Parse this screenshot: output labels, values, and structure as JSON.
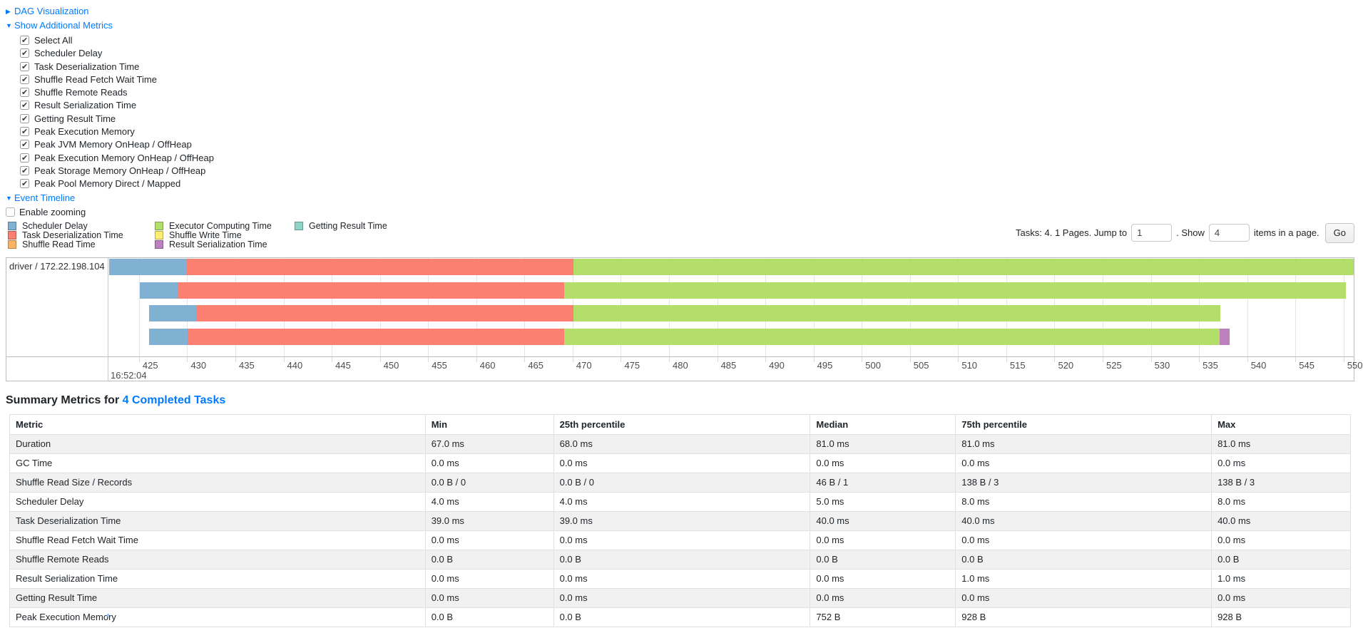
{
  "colors": {
    "link": "#007bff",
    "scheduler_delay": "#80B1D3",
    "deserialization": "#FB8072",
    "shuffle_read": "#FDB462",
    "compute": "#B3DE69",
    "shuffle_write": "#FFED6F",
    "result_serialization": "#BC80BD",
    "getting_result": "#8DD3C7"
  },
  "toggles": {
    "dag_label": "DAG Visualization",
    "metrics_label": "Show Additional Metrics",
    "event_timeline_label": "Event Timeline",
    "enable_zooming_label": "Enable zooming"
  },
  "metric_options": [
    {
      "label": "Select All",
      "checked": true
    },
    {
      "label": "Scheduler Delay",
      "checked": true
    },
    {
      "label": "Task Deserialization Time",
      "checked": true
    },
    {
      "label": "Shuffle Read Fetch Wait Time",
      "checked": true
    },
    {
      "label": "Shuffle Remote Reads",
      "checked": true
    },
    {
      "label": "Result Serialization Time",
      "checked": true
    },
    {
      "label": "Getting Result Time",
      "checked": true
    },
    {
      "label": "Peak Execution Memory",
      "checked": true
    },
    {
      "label": "Peak JVM Memory OnHeap / OffHeap",
      "checked": true
    },
    {
      "label": "Peak Execution Memory OnHeap / OffHeap",
      "checked": true
    },
    {
      "label": "Peak Storage Memory OnHeap / OffHeap",
      "checked": true
    },
    {
      "label": "Peak Pool Memory Direct / Mapped",
      "checked": true
    }
  ],
  "legend_columns": [
    [
      {
        "label": "Scheduler Delay",
        "color_key": "scheduler_delay"
      },
      {
        "label": "Task Deserialization Time",
        "color_key": "deserialization"
      },
      {
        "label": "Shuffle Read Time",
        "color_key": "shuffle_read"
      }
    ],
    [
      {
        "label": "Executor Computing Time",
        "color_key": "compute"
      },
      {
        "label": "Shuffle Write Time",
        "color_key": "shuffle_write"
      },
      {
        "label": "Result Serialization Time",
        "color_key": "result_serialization"
      }
    ],
    [
      {
        "label": "Getting Result Time",
        "color_key": "getting_result"
      }
    ]
  ],
  "pager": {
    "summary_text": "Tasks: 4. 1 Pages. Jump to",
    "jump_value": "1",
    "show_text": ". Show",
    "show_value": "4",
    "suffix_text": "items in a page.",
    "go_label": "Go"
  },
  "timeline": {
    "group_label": "driver / 172.22.198.104",
    "axis_min": 421.9,
    "axis_max": 551.05,
    "ticks": [
      425,
      430,
      435,
      440,
      445,
      450,
      455,
      460,
      465,
      470,
      475,
      480,
      485,
      490,
      495,
      500,
      505,
      510,
      515,
      520,
      525,
      530,
      535,
      540,
      545,
      550
    ],
    "major_label": "16:52:04",
    "tasks": [
      {
        "segments": [
          {
            "color_key": "scheduler_delay",
            "from": 421.9,
            "to": 429.95
          },
          {
            "color_key": "deserialization",
            "from": 429.95,
            "to": 470.05
          },
          {
            "color_key": "compute",
            "from": 470.05,
            "to": 551.05
          }
        ]
      },
      {
        "segments": [
          {
            "color_key": "scheduler_delay",
            "from": 425.07,
            "to": 428.99
          },
          {
            "color_key": "deserialization",
            "from": 428.99,
            "to": 469.09
          },
          {
            "color_key": "compute",
            "from": 469.09,
            "to": 550.24
          }
        ]
      },
      {
        "segments": [
          {
            "color_key": "scheduler_delay",
            "from": 426.03,
            "to": 430.98
          },
          {
            "color_key": "deserialization",
            "from": 430.98,
            "to": 470.05
          },
          {
            "color_key": "compute",
            "from": 470.05,
            "to": 537.24
          }
        ]
      },
      {
        "segments": [
          {
            "color_key": "scheduler_delay",
            "from": 426.03,
            "to": 430.02
          },
          {
            "color_key": "deserialization",
            "from": 430.02,
            "to": 469.09
          },
          {
            "color_key": "compute",
            "from": 469.09,
            "to": 537.16
          },
          {
            "color_key": "result_serialization",
            "from": 537.16,
            "to": 538.2
          }
        ]
      }
    ],
    "row_tops": [
      1,
      34,
      66,
      99
    ]
  },
  "summary": {
    "heading_prefix": "Summary Metrics for ",
    "heading_link": "4 Completed Tasks",
    "columns": [
      "Metric",
      "Min",
      "25th percentile",
      "Median",
      "75th percentile",
      "Max"
    ],
    "rows": [
      {
        "metric": "Duration",
        "values": [
          "67.0 ms",
          "68.0 ms",
          "81.0 ms",
          "81.0 ms",
          "81.0 ms"
        ]
      },
      {
        "metric": "GC Time",
        "values": [
          "0.0 ms",
          "0.0 ms",
          "0.0 ms",
          "0.0 ms",
          "0.0 ms"
        ]
      },
      {
        "metric": "Shuffle Read Size / Records",
        "values": [
          "0.0 B / 0",
          "0.0 B / 0",
          "46 B / 1",
          "138 B / 3",
          "138 B / 3"
        ]
      },
      {
        "metric": "Scheduler Delay",
        "values": [
          "4.0 ms",
          "4.0 ms",
          "5.0 ms",
          "8.0 ms",
          "8.0 ms"
        ]
      },
      {
        "metric": "Task Deserialization Time",
        "values": [
          "39.0 ms",
          "39.0 ms",
          "40.0 ms",
          "40.0 ms",
          "40.0 ms"
        ]
      },
      {
        "metric": "Shuffle Read Fetch Wait Time",
        "values": [
          "0.0 ms",
          "0.0 ms",
          "0.0 ms",
          "0.0 ms",
          "0.0 ms"
        ]
      },
      {
        "metric": "Shuffle Remote Reads",
        "values": [
          "0.0 B",
          "0.0 B",
          "0.0 B",
          "0.0 B",
          "0.0 B"
        ]
      },
      {
        "metric": "Result Serialization Time",
        "values": [
          "0.0 ms",
          "0.0 ms",
          "0.0 ms",
          "1.0 ms",
          "1.0 ms"
        ]
      },
      {
        "metric": "Getting Result Time",
        "values": [
          "0.0 ms",
          "0.0 ms",
          "0.0 ms",
          "0.0 ms",
          "0.0 ms"
        ]
      },
      {
        "metric": "Peak Execution Memory",
        "values": [
          "0.0 B",
          "0.0 B",
          "752 B",
          "928 B",
          "928 B"
        ]
      }
    ]
  }
}
